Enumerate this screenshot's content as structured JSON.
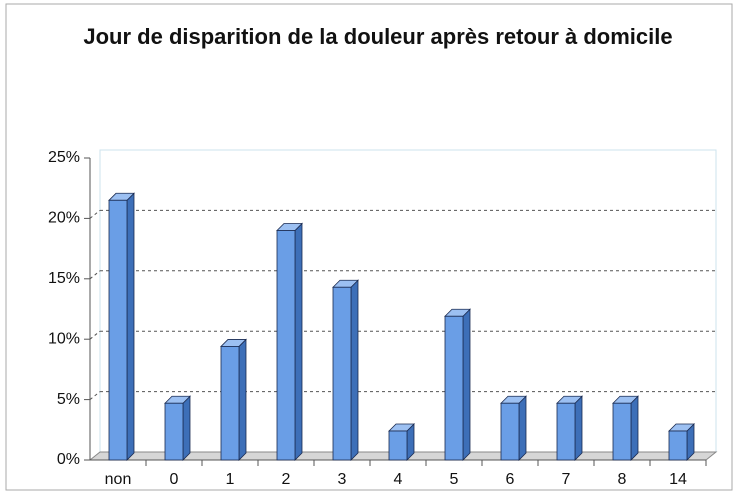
{
  "chart_data": {
    "type": "bar",
    "title": "Jour de disparition de la douleur après retour à domicile",
    "categories": [
      "non",
      "0",
      "1",
      "2",
      "3",
      "4",
      "5",
      "6",
      "7",
      "8",
      "14"
    ],
    "values": [
      21.5,
      4.7,
      9.4,
      19,
      14.3,
      2.4,
      11.9,
      4.7,
      4.7,
      4.7,
      2.4
    ],
    "color": "#6a9ee6",
    "ylim": [
      0,
      25
    ],
    "yticks": [
      {
        "value": 0,
        "label": "0%"
      },
      {
        "value": 5,
        "label": "5%"
      },
      {
        "value": 10,
        "label": "10%"
      },
      {
        "value": 15,
        "label": "15%"
      },
      {
        "value": 20,
        "label": "20%"
      },
      {
        "value": 25,
        "label": "25%"
      }
    ],
    "grid": true
  }
}
